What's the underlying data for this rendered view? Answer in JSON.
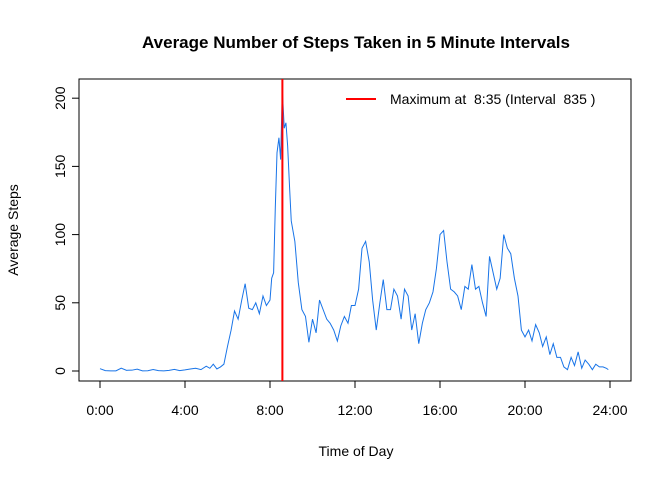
{
  "chart_data": {
    "type": "line",
    "title": "Average Number of Steps Taken in 5 Minute Intervals",
    "xlabel": "Time of Day",
    "ylabel": "Average Steps",
    "xlim": [
      0,
      24
    ],
    "ylim": [
      0,
      206
    ],
    "grid": false,
    "legend_position": "top-right",
    "x_tick_values": [
      0,
      4,
      8,
      12,
      16,
      20,
      24
    ],
    "x_tick_labels": [
      "0:00",
      "4:00",
      "8:00",
      "12:00",
      "16:00",
      "20:00",
      "24:00"
    ],
    "y_ticks": [
      0,
      50,
      100,
      150,
      200
    ],
    "line_color": "#1874e8",
    "marker_color": "#ff0000",
    "max_marker": {
      "x": 8.5833,
      "label": "Maximum at  8:35 (Interval  835 )"
    },
    "series": [
      {
        "x": [
          0,
          0.25,
          0.5,
          0.75,
          1,
          1.25,
          1.5,
          1.75,
          2,
          2.25,
          2.5,
          2.75,
          3,
          3.25,
          3.5,
          3.75,
          4,
          4.25,
          4.5,
          4.75,
          5,
          5.17,
          5.33,
          5.5,
          5.67,
          5.83,
          6,
          6.17,
          6.33,
          6.5,
          6.67,
          6.83,
          7,
          7.17,
          7.33,
          7.5,
          7.67,
          7.83,
          8,
          8.08,
          8.17,
          8.25,
          8.33,
          8.42,
          8.5,
          8.58,
          8.67,
          8.75,
          8.83,
          8.92,
          9,
          9.17,
          9.33,
          9.5,
          9.67,
          9.83,
          10,
          10.17,
          10.33,
          10.5,
          10.67,
          10.83,
          11,
          11.17,
          11.33,
          11.5,
          11.67,
          11.83,
          12,
          12.17,
          12.33,
          12.5,
          12.67,
          12.83,
          13,
          13.17,
          13.33,
          13.5,
          13.67,
          13.83,
          14,
          14.17,
          14.33,
          14.5,
          14.67,
          14.83,
          15,
          15.17,
          15.33,
          15.5,
          15.67,
          15.83,
          16,
          16.17,
          16.33,
          16.5,
          16.67,
          16.83,
          17,
          17.17,
          17.33,
          17.5,
          17.67,
          17.83,
          18,
          18.17,
          18.33,
          18.5,
          18.67,
          18.83,
          19,
          19.17,
          19.33,
          19.5,
          19.67,
          19.83,
          20,
          20.17,
          20.33,
          20.5,
          20.67,
          20.83,
          21,
          21.17,
          21.33,
          21.5,
          21.67,
          21.83,
          22,
          22.17,
          22.33,
          22.5,
          22.67,
          22.83,
          23,
          23.17,
          23.33,
          23.5,
          23.67,
          23.83,
          23.92
        ],
        "values": [
          1.7,
          0.3,
          0.1,
          0.1,
          2.1,
          0.5,
          0.6,
          1.4,
          0.1,
          0.2,
          1.1,
          0.3,
          0.1,
          0.5,
          1.2,
          0.3,
          0.8,
          1.5,
          2.0,
          1.0,
          3.5,
          2.0,
          5.0,
          1.5,
          3.0,
          5.0,
          18,
          30,
          44,
          38,
          52,
          64,
          46,
          45,
          50,
          42,
          55,
          48,
          52,
          68,
          72,
          120,
          160,
          171,
          155,
          206,
          178,
          182,
          165,
          135,
          110,
          95,
          65,
          45,
          40,
          21,
          38,
          28,
          52,
          45,
          38,
          35,
          30,
          22,
          33,
          40,
          35,
          48,
          48,
          60,
          90,
          95,
          80,
          52,
          30,
          50,
          67,
          45,
          45,
          60,
          55,
          38,
          60,
          55,
          30,
          42,
          20,
          35,
          45,
          50,
          58,
          75,
          100,
          103,
          80,
          60,
          58,
          55,
          45,
          62,
          60,
          78,
          60,
          62,
          50,
          40,
          84,
          72,
          60,
          68,
          100,
          90,
          86,
          68,
          55,
          30,
          25,
          30,
          22,
          34,
          28,
          18,
          25,
          12,
          20,
          10,
          10,
          3,
          1,
          10,
          4,
          14,
          2,
          8,
          5,
          1,
          5,
          3,
          3,
          2,
          1
        ]
      }
    ]
  }
}
